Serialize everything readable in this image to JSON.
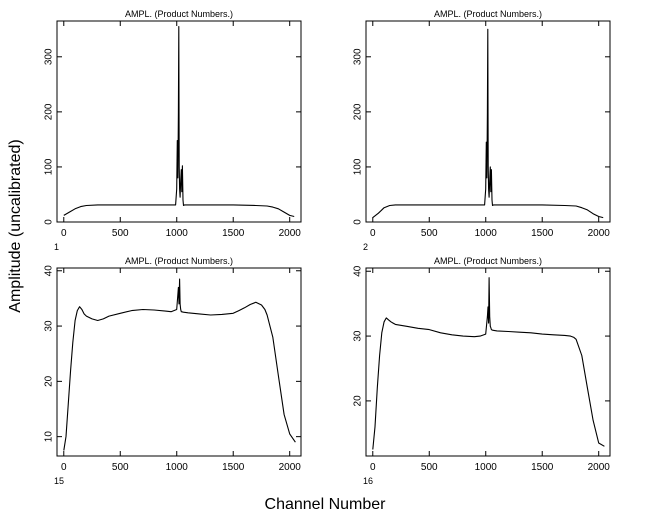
{
  "figure": {
    "xlabel": "Channel Number",
    "ylabel": "Amplitude (uncalibrated)"
  },
  "chart_data": [
    {
      "type": "line",
      "title": "AMPL.  (Product Numbers.)",
      "panel_label": "1",
      "xlim": [
        -60,
        2100
      ],
      "ylim": [
        0,
        365
      ],
      "xticks": [
        0,
        500,
        1000,
        1500,
        2000
      ],
      "yticks": [
        0,
        100,
        200,
        300
      ],
      "series": [
        {
          "x": [
            0,
            50,
            100,
            150,
            200,
            300,
            500,
            700,
            900,
            990,
            1000,
            1005,
            1010,
            1015,
            1018,
            1020,
            1022,
            1025,
            1030,
            1035,
            1040,
            1045,
            1050,
            1055,
            1060,
            1070,
            1100,
            1300,
            1500,
            1700,
            1800,
            1850,
            1900,
            1950,
            2000,
            2040
          ],
          "y": [
            12,
            18,
            24,
            28,
            30,
            31,
            31,
            31,
            31,
            31,
            60,
            148,
            80,
            200,
            355,
            220,
            100,
            60,
            45,
            75,
            95,
            55,
            102,
            40,
            30,
            31,
            31,
            31,
            31,
            30,
            29,
            27,
            24,
            18,
            12,
            10
          ]
        }
      ]
    },
    {
      "type": "line",
      "title": "AMPL.  (Product Numbers.)",
      "panel_label": "2",
      "xlim": [
        -60,
        2100
      ],
      "ylim": [
        0,
        365
      ],
      "xticks": [
        0,
        500,
        1000,
        1500,
        2000
      ],
      "yticks": [
        0,
        100,
        200,
        300
      ],
      "series": [
        {
          "x": [
            0,
            50,
            100,
            150,
            200,
            300,
            500,
            700,
            900,
            990,
            1000,
            1005,
            1010,
            1015,
            1018,
            1020,
            1022,
            1025,
            1030,
            1035,
            1040,
            1045,
            1050,
            1055,
            1060,
            1070,
            1100,
            1300,
            1500,
            1700,
            1800,
            1850,
            1900,
            1950,
            2000,
            2040
          ],
          "y": [
            8,
            16,
            26,
            30,
            31,
            31,
            31,
            31,
            31,
            31,
            60,
            145,
            80,
            200,
            350,
            220,
            100,
            60,
            45,
            75,
            100,
            55,
            95,
            40,
            30,
            31,
            31,
            31,
            31,
            30,
            29,
            26,
            22,
            15,
            10,
            8
          ]
        }
      ]
    },
    {
      "type": "line",
      "title": "AMPL.  (Product Numbers.)",
      "panel_label": "15",
      "xlim": [
        -60,
        2100
      ],
      "ylim": [
        6.5,
        40.5
      ],
      "xticks": [
        0,
        500,
        1000,
        1500,
        2000
      ],
      "yticks": [
        10,
        20,
        30,
        40
      ],
      "series": [
        {
          "x": [
            0,
            20,
            40,
            60,
            80,
            100,
            120,
            140,
            160,
            180,
            200,
            250,
            300,
            350,
            400,
            500,
            600,
            700,
            800,
            900,
            950,
            1000,
            1010,
            1015,
            1020,
            1025,
            1030,
            1035,
            1040,
            1060,
            1100,
            1200,
            1300,
            1400,
            1500,
            1550,
            1600,
            1650,
            1700,
            1750,
            1780,
            1800,
            1850,
            1900,
            1950,
            2000,
            2050
          ],
          "y": [
            7.5,
            10,
            16,
            22,
            27,
            31,
            32.8,
            33.5,
            33,
            32.2,
            31.8,
            31.3,
            31,
            31.3,
            31.8,
            32.3,
            32.8,
            33,
            32.9,
            32.7,
            32.6,
            33,
            35.8,
            37,
            34,
            38.5,
            34,
            33,
            32.6,
            32.5,
            32.4,
            32.2,
            32,
            32.1,
            32.3,
            32.8,
            33.3,
            33.9,
            34.3,
            33.8,
            33,
            32,
            28,
            21,
            14,
            10.5,
            9
          ]
        }
      ]
    },
    {
      "type": "line",
      "title": "AMPL.  (Product Numbers.)",
      "panel_label": "16",
      "xlim": [
        -60,
        2100
      ],
      "ylim": [
        11.5,
        40.5
      ],
      "xticks": [
        0,
        500,
        1000,
        1500,
        2000
      ],
      "yticks": [
        20,
        30,
        40
      ],
      "series": [
        {
          "x": [
            0,
            20,
            40,
            60,
            80,
            100,
            120,
            140,
            160,
            180,
            200,
            300,
            400,
            500,
            600,
            700,
            800,
            900,
            950,
            1000,
            1015,
            1020,
            1025,
            1030,
            1035,
            1040,
            1045,
            1050,
            1060,
            1100,
            1200,
            1300,
            1400,
            1500,
            1600,
            1700,
            1750,
            1780,
            1800,
            1850,
            1900,
            1950,
            2000,
            2050
          ],
          "y": [
            12.5,
            16,
            22,
            27,
            30.5,
            32.2,
            32.8,
            32.5,
            32.2,
            32,
            31.8,
            31.5,
            31.2,
            31,
            30.5,
            30.2,
            30,
            29.9,
            30,
            30.3,
            33,
            34.5,
            32,
            39,
            33,
            31.5,
            31.3,
            31,
            30.9,
            30.8,
            30.7,
            30.6,
            30.5,
            30.3,
            30.2,
            30.1,
            30,
            29.8,
            29.5,
            27,
            22,
            17,
            13.5,
            13
          ]
        }
      ]
    }
  ]
}
